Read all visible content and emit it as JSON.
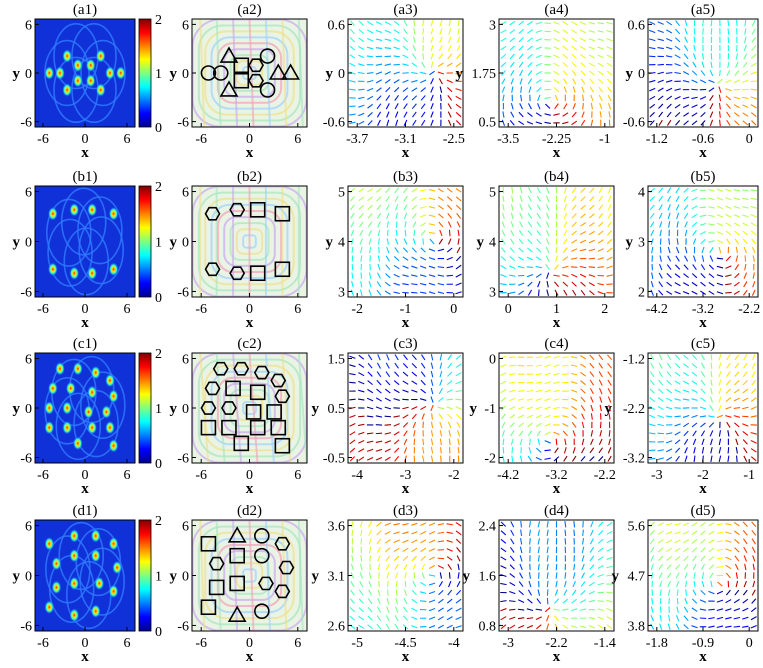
{
  "chart_data": [
    {
      "type": "heatmap",
      "title": "(a1)",
      "xlabel": "x",
      "ylabel": "y",
      "xticks": [
        "-6",
        "0",
        "6"
      ],
      "yticks": [
        "6",
        "0",
        "-6"
      ],
      "colorbar": {
        "ticks": [
          "2",
          "1",
          "0"
        ],
        "range": [
          0,
          2
        ]
      }
    },
    {
      "type": "heatmap",
      "title": "(a2)",
      "xlabel": "x",
      "ylabel": "y",
      "xticks": [
        "-6",
        "0",
        "6"
      ],
      "yticks": [
        "6",
        "0",
        "-6"
      ],
      "markers": [
        {
          "shape": "circle",
          "x": -5,
          "y": 0
        },
        {
          "shape": "circle",
          "x": -3.5,
          "y": 0
        },
        {
          "shape": "triangle",
          "x": -2.5,
          "y": 2.2
        },
        {
          "shape": "triangle",
          "x": -2.5,
          "y": -2.2
        },
        {
          "shape": "square",
          "x": -1,
          "y": 1
        },
        {
          "shape": "square",
          "x": -1,
          "y": -1
        },
        {
          "shape": "hexagon",
          "x": 0.8,
          "y": 1
        },
        {
          "shape": "hexagon",
          "x": 0.8,
          "y": -1
        },
        {
          "shape": "circle",
          "x": 2.2,
          "y": 2.2
        },
        {
          "shape": "circle",
          "x": 2.2,
          "y": -2.2
        },
        {
          "shape": "triangle",
          "x": 3.5,
          "y": 0
        },
        {
          "shape": "triangle",
          "x": 5,
          "y": 0
        }
      ]
    },
    {
      "type": "scatter",
      "title": "(a3)",
      "xlabel": "x",
      "ylabel": "y",
      "xticks": [
        "-3.7",
        "-3.1",
        "-2.5"
      ],
      "yticks": [
        "0.6",
        "0",
        "-0.6"
      ],
      "xlim": [
        -4,
        -2.5
      ],
      "ylim": [
        -0.6,
        0.6
      ]
    },
    {
      "type": "scatter",
      "title": "(a4)",
      "xlabel": "x",
      "ylabel": "y",
      "xticks": [
        "-3.5",
        "-2.25",
        "-1"
      ],
      "yticks": [
        "3",
        "1.75",
        "0.5"
      ],
      "xlim": [
        -3.5,
        -1
      ],
      "ylim": [
        0.5,
        3
      ]
    },
    {
      "type": "scatter",
      "title": "(a5)",
      "xlabel": "x",
      "ylabel": "y",
      "xticks": [
        "-1.2",
        "-0.6",
        "0"
      ],
      "yticks": [
        "0.6",
        "0",
        "-0.6"
      ],
      "xlim": [
        -1.2,
        0
      ],
      "ylim": [
        -0.6,
        0.6
      ]
    },
    {
      "type": "heatmap",
      "title": "(b1)",
      "xlabel": "x",
      "ylabel": "y",
      "xticks": [
        "-6",
        "0",
        "6"
      ],
      "yticks": [
        "6",
        "0",
        "-6"
      ],
      "colorbar": {
        "ticks": [
          "2",
          "1",
          "0"
        ],
        "range": [
          0,
          2
        ]
      }
    },
    {
      "type": "heatmap",
      "title": "(b2)",
      "xlabel": "x",
      "ylabel": "y",
      "xticks": [
        "-6",
        "0",
        "6"
      ],
      "yticks": [
        "6",
        "0",
        "-6"
      ],
      "markers": [
        {
          "shape": "hexagon",
          "x": -4.5,
          "y": 3.5
        },
        {
          "shape": "hexagon",
          "x": -1.5,
          "y": 4
        },
        {
          "shape": "square",
          "x": 1,
          "y": 4
        },
        {
          "shape": "square",
          "x": 4,
          "y": 3.5
        },
        {
          "shape": "hexagon",
          "x": -4.5,
          "y": -3.5
        },
        {
          "shape": "hexagon",
          "x": -1.5,
          "y": -4
        },
        {
          "shape": "square",
          "x": 1,
          "y": -4
        },
        {
          "shape": "square",
          "x": 4,
          "y": -3.5
        }
      ]
    },
    {
      "type": "scatter",
      "title": "(b3)",
      "xlabel": "x",
      "ylabel": "y",
      "xticks": [
        "-2",
        "-1",
        "0"
      ],
      "yticks": [
        "5",
        "4",
        "3"
      ],
      "xlim": [
        -2,
        0
      ],
      "ylim": [
        3,
        5
      ]
    },
    {
      "type": "scatter",
      "title": "(b4)",
      "xlabel": "x",
      "ylabel": "y",
      "xticks": [
        "0",
        "1",
        "2"
      ],
      "yticks": [
        "5",
        "4",
        "3"
      ],
      "xlim": [
        0,
        2
      ],
      "ylim": [
        3,
        5
      ]
    },
    {
      "type": "scatter",
      "title": "(b5)",
      "xlabel": "x",
      "ylabel": "y",
      "xticks": [
        "-4.2",
        "-3.2",
        "-2.2"
      ],
      "yticks": [
        "4",
        "3",
        "2"
      ],
      "xlim": [
        -4.2,
        -2.2
      ],
      "ylim": [
        2,
        4
      ]
    },
    {
      "type": "heatmap",
      "title": "(c1)",
      "xlabel": "x",
      "ylabel": "y",
      "xticks": [
        "-6",
        "0",
        "6"
      ],
      "yticks": [
        "6",
        "0",
        "-6"
      ],
      "colorbar": {
        "ticks": [
          "2",
          "1",
          "0"
        ],
        "range": [
          0,
          2
        ]
      }
    },
    {
      "type": "heatmap",
      "title": "(c2)",
      "xlabel": "x",
      "ylabel": "y",
      "xticks": [
        "-6",
        "0",
        "6"
      ],
      "yticks": [
        "6",
        "0",
        "-6"
      ],
      "markers": [
        {
          "shape": "hexagon",
          "x": -3.5,
          "y": 5
        },
        {
          "shape": "hexagon",
          "x": -1,
          "y": 5
        },
        {
          "shape": "hexagon",
          "x": 1.5,
          "y": 4.5
        },
        {
          "shape": "hexagon",
          "x": 3.5,
          "y": 3.5
        },
        {
          "shape": "hexagon",
          "x": -4.5,
          "y": 2.5
        },
        {
          "shape": "square",
          "x": -2,
          "y": 2.5
        },
        {
          "shape": "square",
          "x": 1,
          "y": 2
        },
        {
          "shape": "hexagon",
          "x": 4,
          "y": 1.5
        },
        {
          "shape": "hexagon",
          "x": -5,
          "y": 0
        },
        {
          "shape": "hexagon",
          "x": -2.5,
          "y": 0
        },
        {
          "shape": "square",
          "x": 0.5,
          "y": -0.5
        },
        {
          "shape": "square",
          "x": 3,
          "y": -0.5
        },
        {
          "shape": "square",
          "x": -5,
          "y": -2.5
        },
        {
          "shape": "square",
          "x": -2.5,
          "y": -2.5
        },
        {
          "shape": "square",
          "x": 1,
          "y": -2.5
        },
        {
          "shape": "square",
          "x": 3.5,
          "y": -2.5
        },
        {
          "shape": "square",
          "x": -1,
          "y": -4.5
        },
        {
          "shape": "square",
          "x": 4,
          "y": -4.8
        }
      ]
    },
    {
      "type": "scatter",
      "title": "(c3)",
      "xlabel": "x",
      "ylabel": "y",
      "xticks": [
        "-4",
        "-3",
        "-2"
      ],
      "yticks": [
        "1.5",
        "0.5",
        "-0.5"
      ],
      "xlim": [
        -4,
        -2
      ],
      "ylim": [
        -0.5,
        1.5
      ]
    },
    {
      "type": "scatter",
      "title": "(c4)",
      "xlabel": "x",
      "ylabel": "y",
      "xticks": [
        "-4.2",
        "-3.2",
        "-2.2"
      ],
      "yticks": [
        "0",
        "-1",
        "-2"
      ],
      "xlim": [
        -4.2,
        -2.2
      ],
      "ylim": [
        -2,
        0
      ]
    },
    {
      "type": "scatter",
      "title": "(c5)",
      "xlabel": "x",
      "ylabel": "y",
      "xticks": [
        "-3",
        "-2",
        "-1"
      ],
      "yticks": [
        "-1.2",
        "-2.2",
        "-3.2"
      ],
      "xlim": [
        -3,
        -1
      ],
      "ylim": [
        -3.2,
        -1.2
      ]
    },
    {
      "type": "heatmap",
      "title": "(d1)",
      "xlabel": "x",
      "ylabel": "y",
      "xticks": [
        "-6",
        "0",
        "6"
      ],
      "yticks": [
        "6",
        "0",
        "-6"
      ],
      "colorbar": {
        "ticks": [
          "2",
          "1",
          "0"
        ],
        "range": [
          0,
          2
        ]
      }
    },
    {
      "type": "heatmap",
      "title": "(d2)",
      "xlabel": "x",
      "ylabel": "y",
      "xticks": [
        "-6",
        "0",
        "6"
      ],
      "yticks": [
        "6",
        "0",
        "-6"
      ],
      "markers": [
        {
          "shape": "square",
          "x": -5,
          "y": 4
        },
        {
          "shape": "triangle",
          "x": -1.5,
          "y": 5
        },
        {
          "shape": "circle",
          "x": 1.5,
          "y": 5
        },
        {
          "shape": "hexagon",
          "x": 4,
          "y": 4
        },
        {
          "shape": "hexagon",
          "x": -4,
          "y": 1.5
        },
        {
          "shape": "square",
          "x": -1.5,
          "y": 2.5
        },
        {
          "shape": "circle",
          "x": 1.5,
          "y": 2.5
        },
        {
          "shape": "hexagon",
          "x": 4.5,
          "y": 1
        },
        {
          "shape": "square",
          "x": -4,
          "y": -1.5
        },
        {
          "shape": "square",
          "x": -1.5,
          "y": -1
        },
        {
          "shape": "hexagon",
          "x": 2,
          "y": -1
        },
        {
          "shape": "hexagon",
          "x": 4,
          "y": -2
        },
        {
          "shape": "square",
          "x": -5,
          "y": -4
        },
        {
          "shape": "triangle",
          "x": -1.5,
          "y": -5
        },
        {
          "shape": "circle",
          "x": 1.5,
          "y": -4.5
        }
      ]
    },
    {
      "type": "scatter",
      "title": "(d3)",
      "xlabel": "x",
      "ylabel": "y",
      "xticks": [
        "-5",
        "-4.5",
        "-4"
      ],
      "yticks": [
        "3.6",
        "3.1",
        "2.6"
      ],
      "xlim": [
        -5,
        -4
      ],
      "ylim": [
        2.6,
        3.6
      ]
    },
    {
      "type": "scatter",
      "title": "(d4)",
      "xlabel": "x",
      "ylabel": "y",
      "xticks": [
        "-3",
        "-2.2",
        "-1.4"
      ],
      "yticks": [
        "2.4",
        "1.6",
        "0.8"
      ],
      "xlim": [
        -3,
        -1.4
      ],
      "ylim": [
        0.8,
        2.4
      ]
    },
    {
      "type": "scatter",
      "title": "(d5)",
      "xlabel": "x",
      "ylabel": "y",
      "xticks": [
        "-1.8",
        "-0.9",
        "0"
      ],
      "yticks": [
        "5.6",
        "4.7",
        "3.8"
      ],
      "xlim": [
        -1.8,
        0
      ],
      "ylim": [
        3.8,
        5.6
      ]
    }
  ]
}
